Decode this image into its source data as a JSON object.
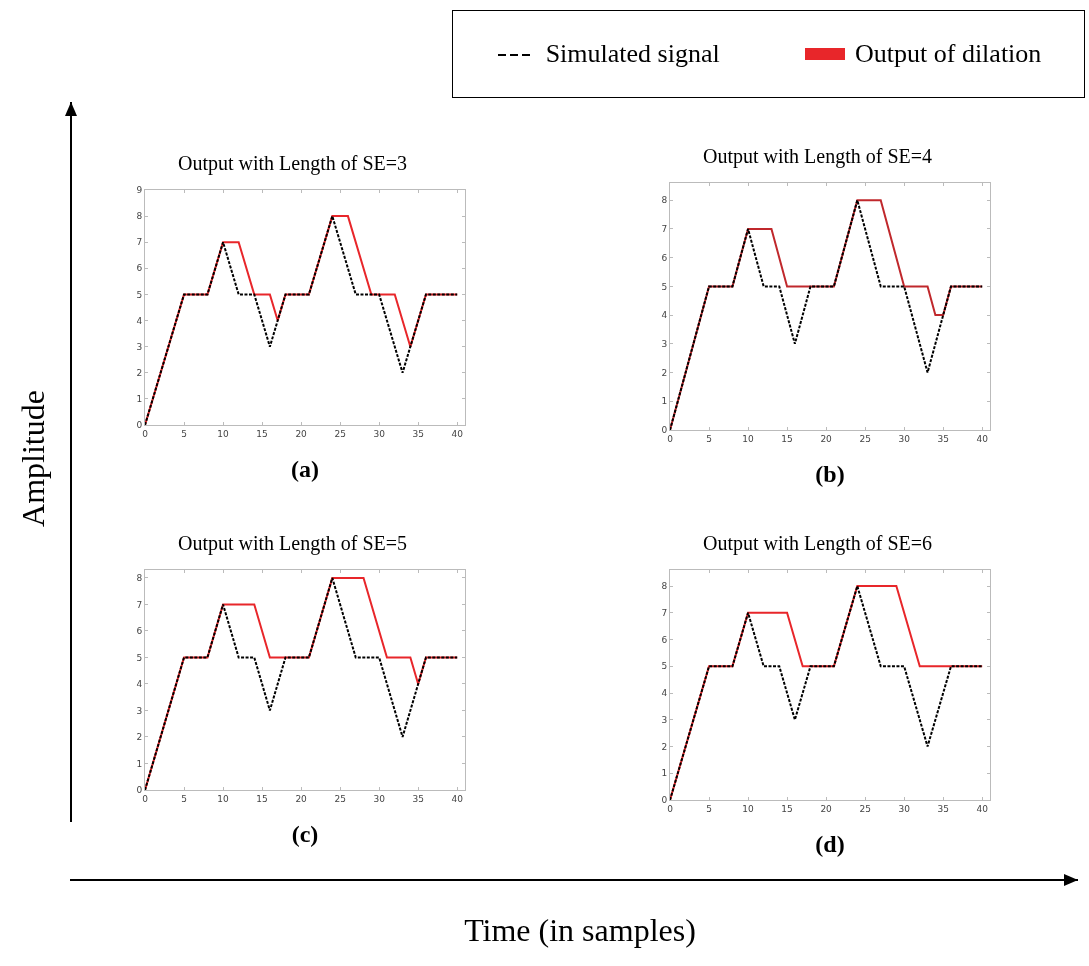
{
  "chart_data": [
    {
      "type": "line",
      "title": "Output with Length of SE=3",
      "xlabel": "(a)",
      "annotations": [
        "Amplitude",
        "Time (in samples)"
      ],
      "legend": "top right",
      "xlim": [
        0,
        41
      ],
      "ylim": [
        0,
        9
      ],
      "xticks": [
        0,
        5,
        10,
        15,
        20,
        25,
        30,
        35,
        40
      ],
      "yticks": [
        0,
        1,
        2,
        3,
        4,
        5,
        6,
        7,
        8,
        9
      ],
      "grid": false,
      "marker": "none",
      "series": [
        {
          "name": "Simulated signal",
          "color": "#000000",
          "line_style": "dashed",
          "x": [
            0,
            5,
            8,
            10,
            12,
            14,
            16,
            18,
            21,
            24,
            27,
            30,
            33,
            36,
            40
          ],
          "values": [
            0,
            5,
            5,
            7,
            5,
            5,
            3,
            5,
            5,
            8,
            5,
            5,
            2,
            5,
            5
          ]
        },
        {
          "name": "Output of dilation",
          "color": "#e8262a",
          "line_style": "solid",
          "x": [
            0,
            5,
            8,
            10,
            12,
            14,
            16,
            17,
            18,
            21,
            24,
            26,
            29,
            32,
            34,
            36,
            40
          ],
          "values": [
            0,
            5,
            5,
            7,
            7,
            5,
            5,
            4,
            5,
            5,
            8,
            8,
            5,
            5,
            3,
            5,
            5
          ]
        }
      ]
    },
    {
      "type": "line",
      "title": "Output with Length of SE=4",
      "xlabel": "(b)",
      "xlim": [
        0,
        41
      ],
      "ylim": [
        0,
        8.6
      ],
      "xticks": [
        0,
        5,
        10,
        15,
        20,
        25,
        30,
        35,
        40
      ],
      "yticks": [
        0,
        1,
        2,
        3,
        4,
        5,
        6,
        7,
        8
      ],
      "grid": false,
      "marker": "none",
      "series": [
        {
          "color": "#000000",
          "line_style": "dashed",
          "x": [
            0,
            5,
            8,
            10,
            12,
            14,
            16,
            18,
            21,
            24,
            27,
            30,
            33,
            36,
            40
          ],
          "values": [
            0,
            5,
            5,
            7,
            5,
            5,
            3,
            5,
            5,
            8,
            5,
            5,
            2,
            5,
            5
          ]
        },
        {
          "color": "#c0282c",
          "line_style": "solid",
          "x": [
            0,
            5,
            8,
            10,
            13,
            15,
            21,
            24,
            27,
            30,
            33,
            34,
            35,
            36,
            40
          ],
          "values": [
            0,
            5,
            5,
            7,
            7,
            5,
            5,
            8,
            8,
            5,
            5,
            4,
            4,
            5,
            5
          ]
        }
      ]
    },
    {
      "type": "line",
      "title": "Output with Length of SE=5",
      "xlabel": "(c)",
      "xlim": [
        0,
        41
      ],
      "ylim": [
        0,
        8.3
      ],
      "xticks": [
        0,
        5,
        10,
        15,
        20,
        25,
        30,
        35,
        40
      ],
      "yticks": [
        0,
        1,
        2,
        3,
        4,
        5,
        6,
        7,
        8
      ],
      "grid": false,
      "marker": "none",
      "series": [
        {
          "color": "#000000",
          "line_style": "dashed",
          "x": [
            0,
            5,
            8,
            10,
            12,
            14,
            16,
            18,
            21,
            24,
            27,
            30,
            33,
            36,
            40
          ],
          "values": [
            0,
            5,
            5,
            7,
            5,
            5,
            3,
            5,
            5,
            8,
            5,
            5,
            2,
            5,
            5
          ]
        },
        {
          "color": "#e8262a",
          "line_style": "solid",
          "x": [
            0,
            5,
            8,
            10,
            14,
            16,
            21,
            24,
            28,
            31,
            34,
            35,
            36,
            40
          ],
          "values": [
            0,
            5,
            5,
            7,
            7,
            5,
            5,
            8,
            8,
            5,
            5,
            4,
            5,
            5
          ]
        }
      ]
    },
    {
      "type": "line",
      "title": "Output with Length of SE=6",
      "xlabel": "(d)",
      "xlim": [
        0,
        41
      ],
      "ylim": [
        0,
        8.6
      ],
      "xticks": [
        0,
        5,
        10,
        15,
        20,
        25,
        30,
        35,
        40
      ],
      "yticks": [
        0,
        1,
        2,
        3,
        4,
        5,
        6,
        7,
        8
      ],
      "grid": false,
      "marker": "none",
      "series": [
        {
          "color": "#000000",
          "line_style": "dashed",
          "x": [
            0,
            5,
            8,
            10,
            12,
            14,
            16,
            18,
            21,
            24,
            27,
            30,
            33,
            36,
            40
          ],
          "values": [
            0,
            5,
            5,
            7,
            5,
            5,
            3,
            5,
            5,
            8,
            5,
            5,
            2,
            5,
            5
          ]
        },
        {
          "color": "#e8262a",
          "line_style": "solid",
          "x": [
            0,
            5,
            8,
            10,
            15,
            17,
            21,
            24,
            29,
            32,
            40
          ],
          "values": [
            0,
            5,
            5,
            7,
            7,
            5,
            5,
            8,
            8,
            5,
            5
          ]
        }
      ]
    }
  ]
}
